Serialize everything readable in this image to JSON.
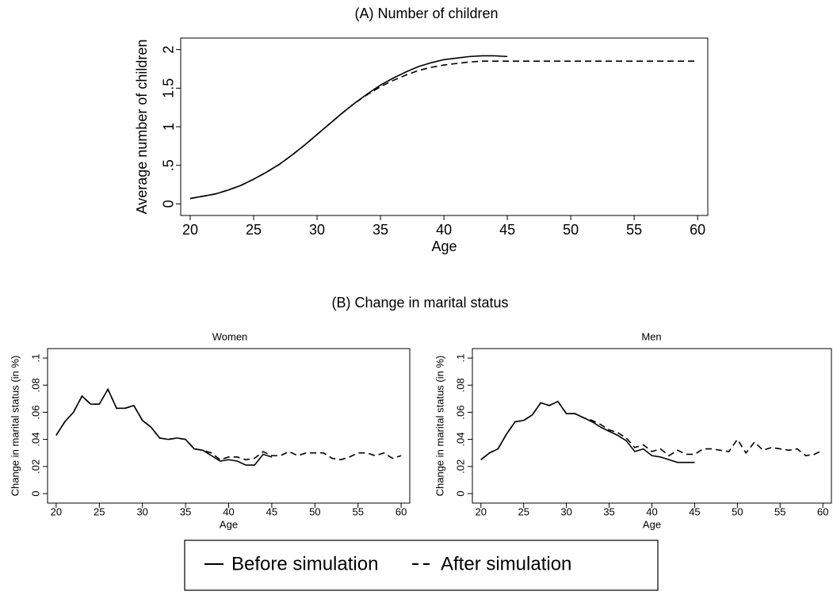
{
  "chart_data": [
    {
      "type": "line",
      "title": "(A) Number of children",
      "x_label": "Age",
      "y_label": "Average number of children",
      "x": [
        20,
        21,
        22,
        23,
        24,
        25,
        26,
        27,
        28,
        29,
        30,
        31,
        32,
        33,
        34,
        35,
        36,
        37,
        38,
        39,
        40,
        41,
        42,
        43,
        44,
        45,
        46,
        47,
        48,
        49,
        50,
        51,
        52,
        53,
        54,
        55,
        56,
        57,
        58,
        59,
        60
      ],
      "series": [
        {
          "name": "Before simulation",
          "color": "#000000",
          "style": "solid",
          "values": [
            0.07,
            0.1,
            0.13,
            0.18,
            0.24,
            0.32,
            0.41,
            0.51,
            0.63,
            0.76,
            0.9,
            1.04,
            1.18,
            1.31,
            1.43,
            1.54,
            1.63,
            1.71,
            1.78,
            1.83,
            1.87,
            1.89,
            1.91,
            1.92,
            1.92,
            1.91,
            null,
            null,
            null,
            null,
            null,
            null,
            null,
            null,
            null,
            null,
            null,
            null,
            null,
            null,
            null
          ]
        },
        {
          "name": "After simulation",
          "color": "#000000",
          "style": "dashed",
          "values": [
            0.07,
            0.1,
            0.13,
            0.18,
            0.24,
            0.32,
            0.41,
            0.51,
            0.63,
            0.76,
            0.9,
            1.04,
            1.18,
            1.31,
            1.42,
            1.52,
            1.6,
            1.67,
            1.73,
            1.77,
            1.8,
            1.82,
            1.84,
            1.85,
            1.85,
            1.85,
            1.85,
            1.85,
            1.85,
            1.85,
            1.85,
            1.85,
            1.85,
            1.85,
            1.85,
            1.85,
            1.85,
            1.85,
            1.85,
            1.85,
            1.85
          ]
        }
      ],
      "xlim": [
        19.25,
        60.8
      ],
      "xticks": [
        20,
        25,
        30,
        35,
        40,
        45,
        50,
        55,
        60
      ],
      "ylim": [
        -0.15,
        2.15
      ],
      "yticks": [
        0,
        {
          "value": 0.5,
          "label": ".5"
        },
        1,
        1.5,
        2
      ]
    },
    {
      "type": "line",
      "group_title": "(B) Change in marital status",
      "title": "Women",
      "x_label": "Age",
      "y_label": "Change in marital status (in %)",
      "x": [
        20,
        21,
        22,
        23,
        24,
        25,
        26,
        27,
        28,
        29,
        30,
        31,
        32,
        33,
        34,
        35,
        36,
        37,
        38,
        39,
        40,
        41,
        42,
        43,
        44,
        45,
        46,
        47,
        48,
        49,
        50,
        51,
        52,
        53,
        54,
        55,
        56,
        57,
        58,
        59,
        60
      ],
      "series": [
        {
          "name": "Before simulation",
          "color": "#000000",
          "style": "solid",
          "values": [
            0.043,
            0.053,
            0.06,
            0.072,
            0.066,
            0.066,
            0.077,
            0.063,
            0.063,
            0.065,
            0.054,
            0.049,
            0.041,
            0.04,
            0.041,
            0.04,
            0.033,
            0.032,
            0.028,
            0.024,
            0.025,
            0.024,
            0.021,
            0.021,
            0.029,
            0.027,
            null,
            null,
            null,
            null,
            null,
            null,
            null,
            null,
            null,
            null,
            null,
            null,
            null,
            null,
            null
          ]
        },
        {
          "name": "After simulation",
          "color": "#000000",
          "style": "dashed",
          "values": [
            0.043,
            0.053,
            0.06,
            0.072,
            0.066,
            0.066,
            0.077,
            0.063,
            0.063,
            0.065,
            0.054,
            0.049,
            0.041,
            0.04,
            0.041,
            0.04,
            0.033,
            0.032,
            0.03,
            0.025,
            0.027,
            0.027,
            0.025,
            0.026,
            0.031,
            0.028,
            0.028,
            0.031,
            0.028,
            0.03,
            0.03,
            0.03,
            0.026,
            0.025,
            0.027,
            0.03,
            0.03,
            0.028,
            0.03,
            0.026,
            0.028
          ]
        }
      ],
      "xlim": [
        19,
        61
      ],
      "xticks": [
        20,
        25,
        30,
        35,
        40,
        45,
        50,
        55,
        60
      ],
      "ylim": [
        -0.007,
        0.107
      ],
      "yticks": [
        0,
        {
          "value": 0.02,
          "label": ".02"
        },
        {
          "value": 0.04,
          "label": ".04"
        },
        {
          "value": 0.06,
          "label": ".06"
        },
        {
          "value": 0.08,
          "label": ".08"
        },
        {
          "value": 0.1,
          "label": ".1"
        }
      ]
    },
    {
      "type": "line",
      "title": "Men",
      "x_label": "Age",
      "y_label": "Change in marital status (in %)",
      "x": [
        20,
        21,
        22,
        23,
        24,
        25,
        26,
        27,
        28,
        29,
        30,
        31,
        32,
        33,
        34,
        35,
        36,
        37,
        38,
        39,
        40,
        41,
        42,
        43,
        44,
        45,
        46,
        47,
        48,
        49,
        50,
        51,
        52,
        53,
        54,
        55,
        56,
        57,
        58,
        59,
        60
      ],
      "series": [
        {
          "name": "Before simulation",
          "color": "#000000",
          "style": "solid",
          "values": [
            0.025,
            0.03,
            0.033,
            0.044,
            0.053,
            0.054,
            0.058,
            0.067,
            0.065,
            0.068,
            0.059,
            0.059,
            0.056,
            0.053,
            0.049,
            0.046,
            0.043,
            0.039,
            0.031,
            0.033,
            0.028,
            0.027,
            0.025,
            0.023,
            0.023,
            0.023,
            null,
            null,
            null,
            null,
            null,
            null,
            null,
            null,
            null,
            null,
            null,
            null,
            null,
            null,
            null
          ]
        },
        {
          "name": "After simulation",
          "color": "#000000",
          "style": "dashed",
          "values": [
            0.025,
            0.03,
            0.033,
            0.044,
            0.053,
            0.054,
            0.058,
            0.067,
            0.065,
            0.068,
            0.059,
            0.059,
            0.056,
            0.054,
            0.051,
            0.047,
            0.045,
            0.041,
            0.034,
            0.036,
            0.031,
            0.033,
            0.028,
            0.032,
            0.029,
            0.029,
            0.033,
            0.033,
            0.032,
            0.031,
            0.04,
            0.03,
            0.038,
            0.032,
            0.034,
            0.033,
            0.032,
            0.033,
            0.028,
            0.029,
            0.032
          ]
        }
      ],
      "xlim": [
        19,
        61
      ],
      "xticks": [
        20,
        25,
        30,
        35,
        40,
        45,
        50,
        55,
        60
      ],
      "ylim": [
        -0.007,
        0.107
      ],
      "yticks": [
        0,
        {
          "value": 0.02,
          "label": ".02"
        },
        {
          "value": 0.04,
          "label": ".04"
        },
        {
          "value": 0.06,
          "label": ".06"
        },
        {
          "value": 0.08,
          "label": ".08"
        },
        {
          "value": 0.1,
          "label": ".1"
        }
      ]
    }
  ]
}
